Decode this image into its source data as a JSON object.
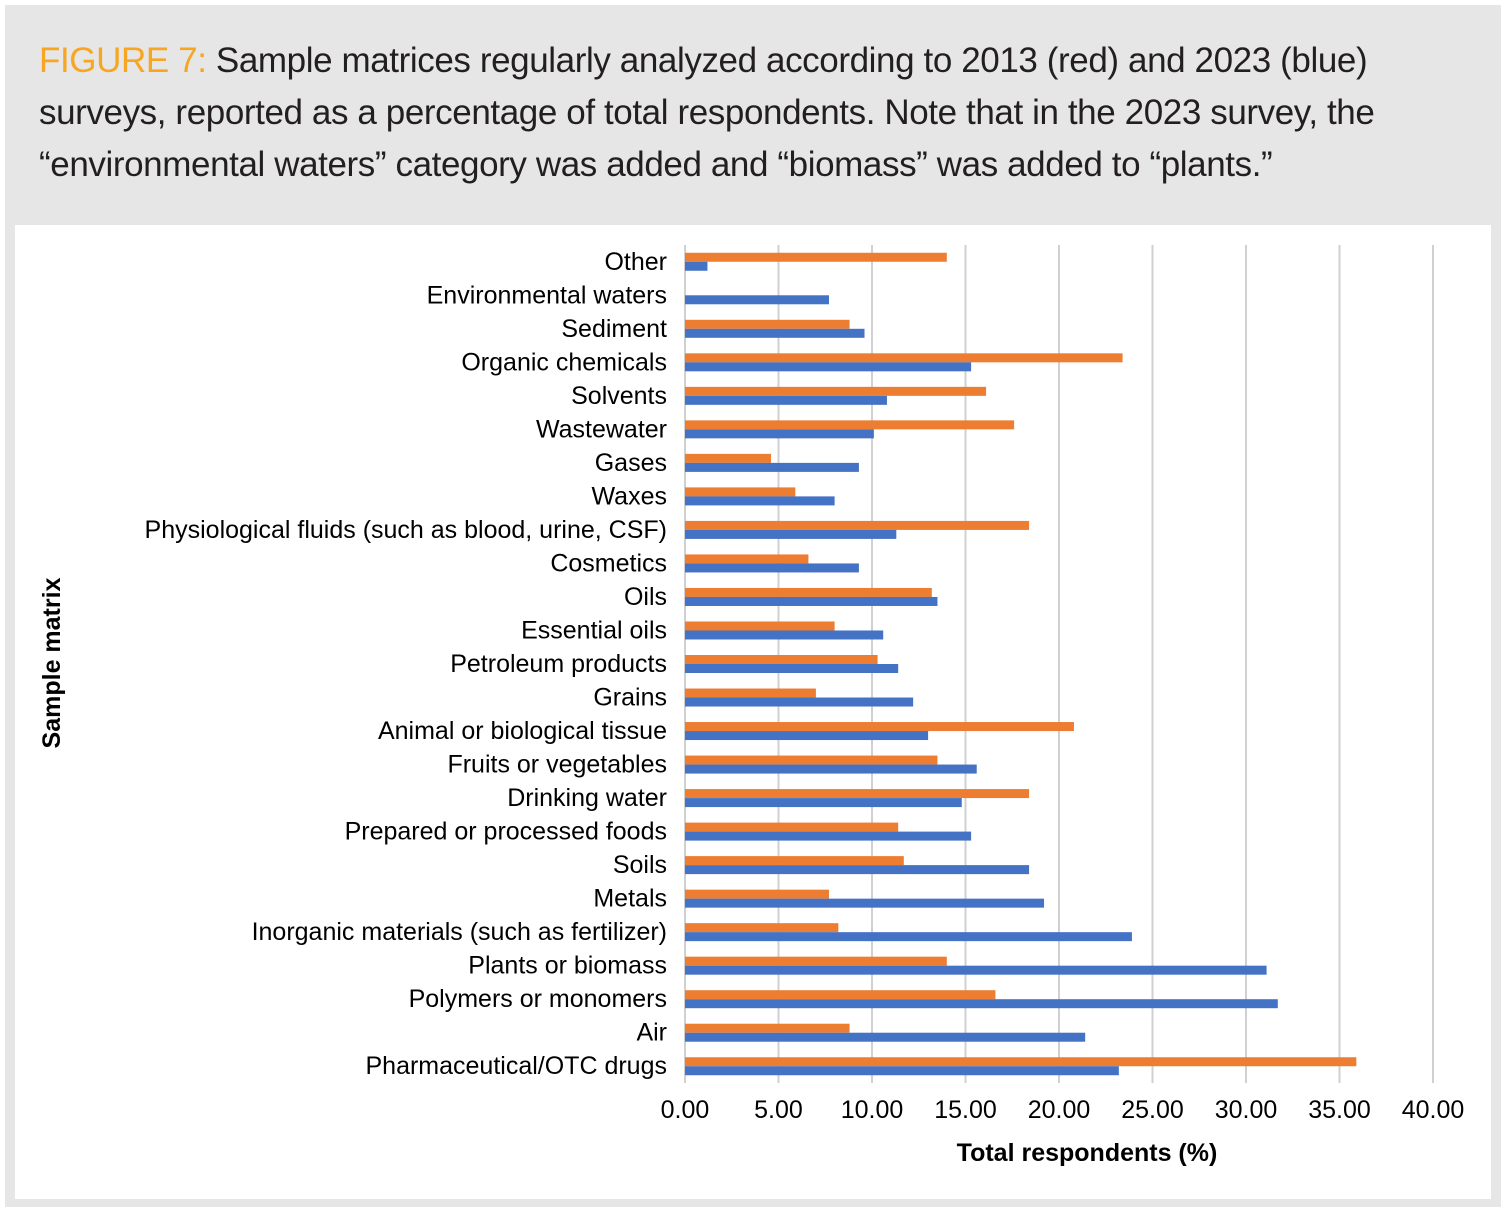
{
  "caption": {
    "label": "FIGURE 7:",
    "text": "Sample matrices regularly analyzed according to 2013 (red) and 2023 (blue) surveys, reported as a percentage of total respondents. Note that in the 2023 survey, the “environmental waters” category was added and “biomass” was added to “plants.”"
  },
  "colors": {
    "series_2013": "#ed7d31",
    "series_2023": "#4472c4",
    "caption_label": "#f6a623",
    "grid": "#d0d0d0"
  },
  "chart_data": {
    "type": "bar",
    "orientation": "horizontal",
    "xlabel": "Total respondents (%)",
    "ylabel": "Sample matrix",
    "xlim": [
      0,
      40
    ],
    "xticks": [
      "0.00",
      "5.00",
      "10.00",
      "15.00",
      "20.00",
      "25.00",
      "30.00",
      "35.00",
      "40.00"
    ],
    "grid": true,
    "categories": [
      "Other",
      "Environmental waters",
      "Sediment",
      "Organic chemicals",
      "Solvents",
      "Wastewater",
      "Gases",
      "Waxes",
      "Physiological fluids (such as blood, urine, CSF)",
      "Cosmetics",
      "Oils",
      "Essential oils",
      "Petroleum products",
      "Grains",
      "Animal or biological tissue",
      "Fruits or vegetables",
      "Drinking water",
      "Prepared or processed foods",
      "Soils",
      "Metals",
      "Inorganic materials (such as fertilizer)",
      "Plants or biomass",
      "Polymers or monomers",
      "Air",
      "Pharmaceutical/OTC drugs"
    ],
    "series": [
      {
        "name": "2013",
        "values": [
          14.0,
          0,
          8.8,
          23.4,
          16.1,
          17.6,
          4.6,
          5.9,
          18.4,
          6.6,
          13.2,
          8.0,
          10.3,
          7.0,
          20.8,
          13.5,
          18.4,
          11.4,
          11.7,
          7.7,
          8.2,
          14.0,
          16.6,
          8.8,
          35.9
        ]
      },
      {
        "name": "2023",
        "values": [
          1.2,
          7.7,
          9.6,
          15.3,
          10.8,
          10.1,
          9.3,
          8.0,
          11.3,
          9.3,
          13.5,
          10.6,
          11.4,
          12.2,
          13.0,
          15.6,
          14.8,
          15.3,
          18.4,
          19.2,
          23.9,
          31.1,
          31.7,
          21.4,
          23.2
        ]
      }
    ]
  }
}
